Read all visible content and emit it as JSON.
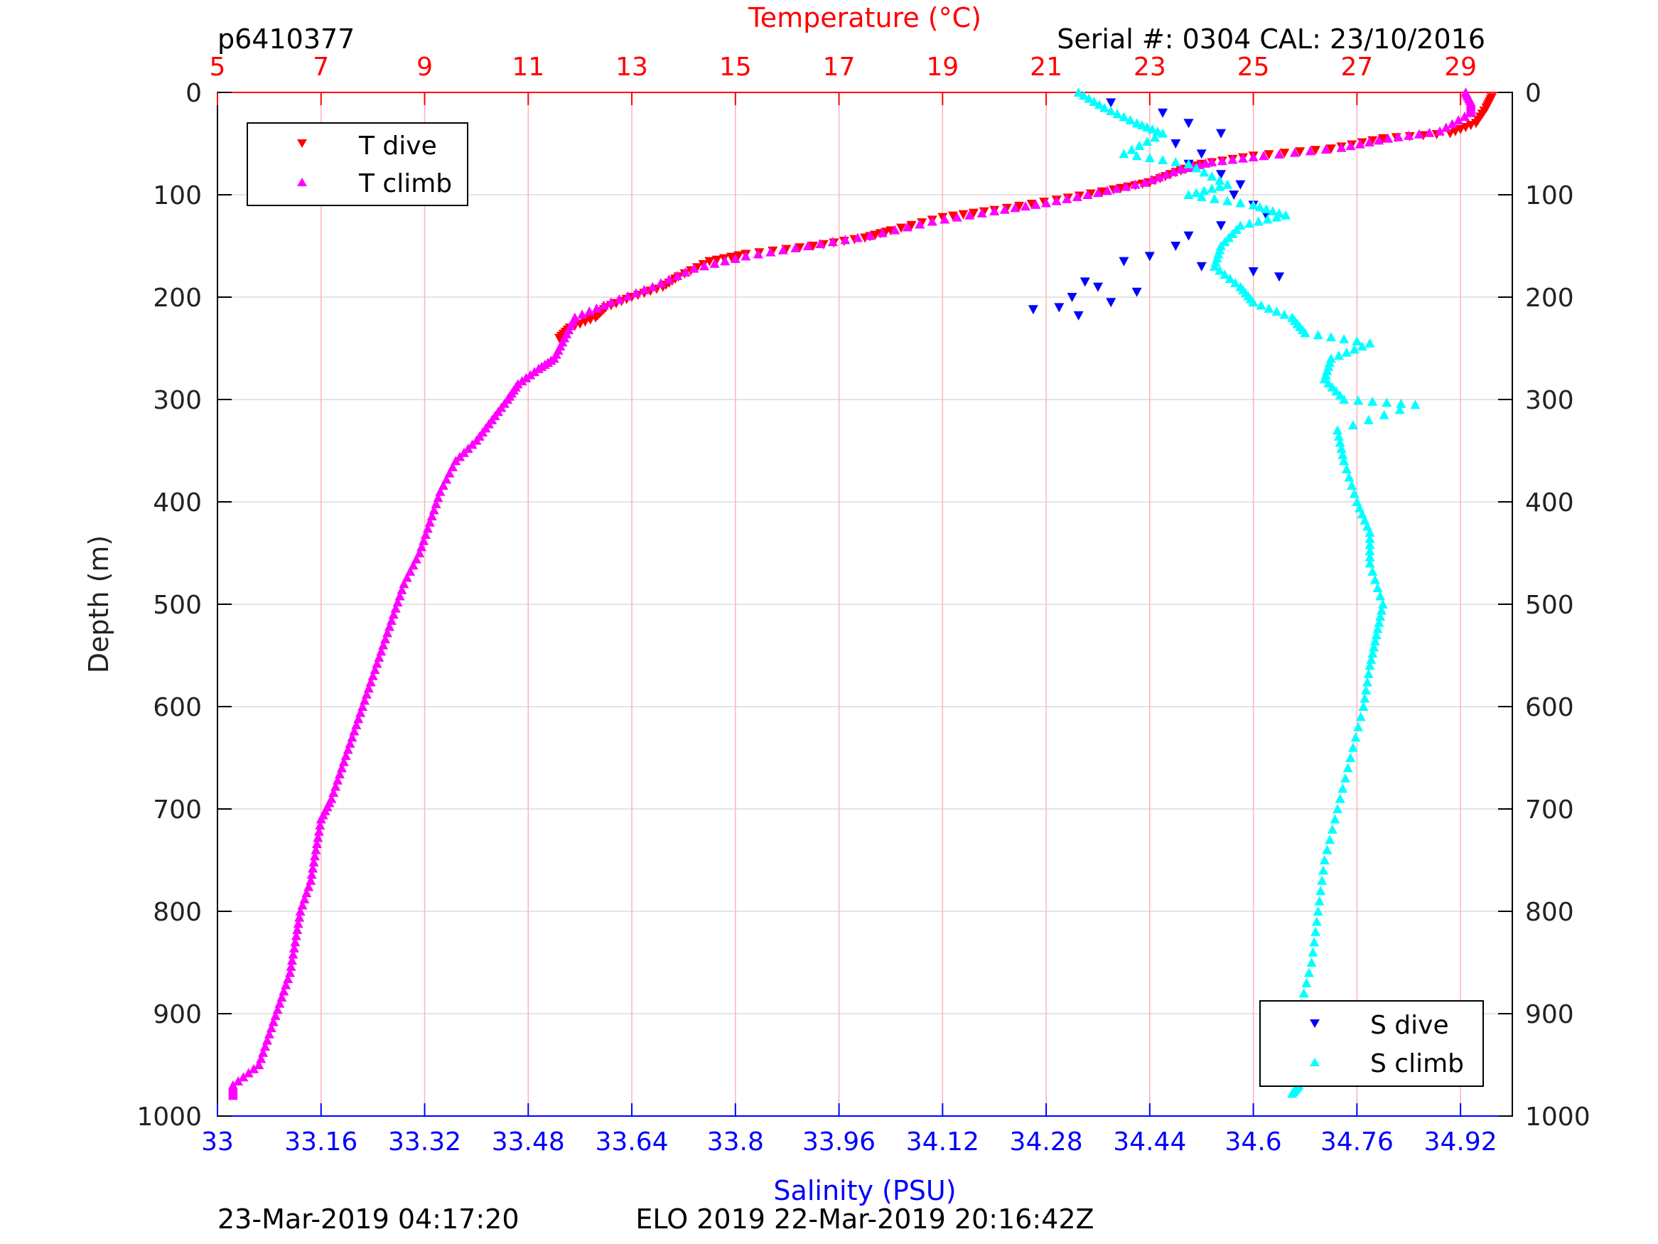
{
  "header": {
    "left": "p6410377",
    "right": "Serial #: 0304  CAL: 23/10/2016"
  },
  "footer": {
    "left": "23-Mar-2019 04:17:20",
    "center": "ELO 2019 22-Mar-2019 20:16:42Z"
  },
  "colors": {
    "t_dive": "#ff0000",
    "t_climb": "#ff00ff",
    "s_dive": "#0000ff",
    "s_climb": "#00ffff",
    "temp_axis": "#ff0000",
    "sal_axis": "#0000ff",
    "grid_temp": "#ffb3b3",
    "grid_depth": "#dcdcdc"
  },
  "chart_data": {
    "type": "scatter",
    "title": "",
    "top_axis": {
      "label": "Temperature (°C)",
      "range": [
        5,
        30
      ],
      "ticks": [
        "5",
        "7",
        "9",
        "11",
        "13",
        "15",
        "17",
        "19",
        "21",
        "23",
        "25",
        "27",
        "29"
      ]
    },
    "bottom_axis": {
      "label": "Salinity (PSU)",
      "range": [
        33,
        35
      ],
      "ticks": [
        "33",
        "33.16",
        "33.32",
        "33.48",
        "33.64",
        "33.8",
        "33.96",
        "34.12",
        "34.28",
        "34.44",
        "34.6",
        "34.76",
        "34.92"
      ]
    },
    "y_axis": {
      "label": "Depth (m)",
      "range": [
        0,
        1000
      ],
      "reversed": true,
      "ticks": [
        "0",
        "100",
        "200",
        "300",
        "400",
        "500",
        "600",
        "700",
        "800",
        "900",
        "1000"
      ]
    },
    "grid": true,
    "legends": [
      {
        "position": "top-left",
        "entries": [
          "T dive",
          "T climb"
        ]
      },
      {
        "position": "bottom-right",
        "entries": [
          "S dive",
          "S climb"
        ]
      }
    ],
    "series": [
      {
        "name": "T dive",
        "axis": "temperature",
        "marker": "triangle-down",
        "points": [
          [
            29.6,
            5
          ],
          [
            29.5,
            15
          ],
          [
            29.3,
            30
          ],
          [
            28.8,
            40
          ],
          [
            27.5,
            45
          ],
          [
            26.5,
            55
          ],
          [
            25.0,
            62
          ],
          [
            24.0,
            70
          ],
          [
            23.5,
            78
          ],
          [
            23.0,
            88
          ],
          [
            22.3,
            95
          ],
          [
            21.2,
            105
          ],
          [
            20.0,
            115
          ],
          [
            19.0,
            122
          ],
          [
            18.0,
            135
          ],
          [
            17.5,
            142
          ],
          [
            16.5,
            150
          ],
          [
            15.2,
            158
          ],
          [
            14.5,
            165
          ],
          [
            13.9,
            180
          ],
          [
            13.6,
            190
          ],
          [
            13.0,
            200
          ],
          [
            12.5,
            210
          ],
          [
            12.3,
            220
          ],
          [
            11.8,
            230
          ],
          [
            11.6,
            240
          ]
        ]
      },
      {
        "name": "T climb",
        "axis": "temperature",
        "marker": "triangle-up",
        "points": [
          [
            29.1,
            0
          ],
          [
            29.2,
            10
          ],
          [
            29.2,
            20
          ],
          [
            28.6,
            38
          ],
          [
            27.6,
            45
          ],
          [
            26.7,
            54
          ],
          [
            25.2,
            62
          ],
          [
            24.2,
            68
          ],
          [
            23.6,
            75
          ],
          [
            22.9,
            88
          ],
          [
            22.0,
            98
          ],
          [
            21.0,
            108
          ],
          [
            20.0,
            116
          ],
          [
            18.8,
            126
          ],
          [
            17.6,
            140
          ],
          [
            16.4,
            150
          ],
          [
            15.2,
            160
          ],
          [
            14.2,
            172
          ],
          [
            13.4,
            190
          ],
          [
            12.6,
            205
          ],
          [
            11.9,
            220
          ],
          [
            11.7,
            240
          ],
          [
            11.5,
            260
          ],
          [
            11.2,
            270
          ],
          [
            10.8,
            285
          ],
          [
            10.6,
            300
          ],
          [
            10.3,
            320
          ],
          [
            10.0,
            340
          ],
          [
            9.6,
            360
          ],
          [
            9.3,
            390
          ],
          [
            9.1,
            420
          ],
          [
            8.9,
            450
          ],
          [
            8.6,
            480
          ],
          [
            8.4,
            510
          ],
          [
            8.2,
            540
          ],
          [
            8.0,
            570
          ],
          [
            7.8,
            600
          ],
          [
            7.6,
            630
          ],
          [
            7.4,
            660
          ],
          [
            7.2,
            690
          ],
          [
            7.0,
            710
          ],
          [
            6.9,
            740
          ],
          [
            6.8,
            770
          ],
          [
            6.6,
            800
          ],
          [
            6.5,
            830
          ],
          [
            6.4,
            860
          ],
          [
            6.2,
            890
          ],
          [
            6.0,
            920
          ],
          [
            5.8,
            950
          ],
          [
            5.3,
            970
          ],
          [
            5.3,
            980
          ]
        ]
      },
      {
        "name": "S dive",
        "axis": "salinity",
        "marker": "triangle-down",
        "points": [
          [
            34.38,
            10
          ],
          [
            34.46,
            20
          ],
          [
            34.5,
            30
          ],
          [
            34.55,
            40
          ],
          [
            34.48,
            50
          ],
          [
            34.52,
            60
          ],
          [
            34.5,
            70
          ],
          [
            34.55,
            80
          ],
          [
            34.58,
            90
          ],
          [
            34.57,
            100
          ],
          [
            34.6,
            110
          ],
          [
            34.62,
            120
          ],
          [
            34.55,
            130
          ],
          [
            34.5,
            140
          ],
          [
            34.48,
            150
          ],
          [
            34.44,
            160
          ],
          [
            34.4,
            165
          ],
          [
            34.52,
            170
          ],
          [
            34.6,
            175
          ],
          [
            34.64,
            180
          ],
          [
            34.34,
            185
          ],
          [
            34.36,
            190
          ],
          [
            34.42,
            195
          ],
          [
            34.32,
            200
          ],
          [
            34.38,
            205
          ],
          [
            34.3,
            210
          ],
          [
            34.33,
            218
          ],
          [
            34.26,
            212
          ]
        ]
      },
      {
        "name": "S climb",
        "axis": "salinity",
        "marker": "triangle-up",
        "points": [
          [
            34.33,
            0
          ],
          [
            34.37,
            15
          ],
          [
            34.42,
            30
          ],
          [
            34.46,
            40
          ],
          [
            34.4,
            60
          ],
          [
            34.5,
            70
          ],
          [
            34.56,
            90
          ],
          [
            34.5,
            100
          ],
          [
            34.6,
            110
          ],
          [
            34.65,
            120
          ],
          [
            34.58,
            130
          ],
          [
            34.55,
            150
          ],
          [
            34.54,
            170
          ],
          [
            34.58,
            190
          ],
          [
            34.6,
            205
          ],
          [
            34.66,
            220
          ],
          [
            34.68,
            235
          ],
          [
            34.78,
            245
          ],
          [
            34.72,
            260
          ],
          [
            34.71,
            280
          ],
          [
            34.74,
            300
          ],
          [
            34.85,
            305
          ],
          [
            34.73,
            330
          ],
          [
            34.74,
            360
          ],
          [
            34.76,
            400
          ],
          [
            34.78,
            430
          ],
          [
            34.78,
            460
          ],
          [
            34.8,
            500
          ],
          [
            34.79,
            530
          ],
          [
            34.78,
            560
          ],
          [
            34.77,
            600
          ],
          [
            34.75,
            650
          ],
          [
            34.73,
            700
          ],
          [
            34.71,
            750
          ],
          [
            34.7,
            800
          ],
          [
            34.69,
            850
          ],
          [
            34.67,
            900
          ],
          [
            34.66,
            950
          ],
          [
            34.67,
            970
          ],
          [
            34.66,
            978
          ]
        ]
      }
    ]
  }
}
